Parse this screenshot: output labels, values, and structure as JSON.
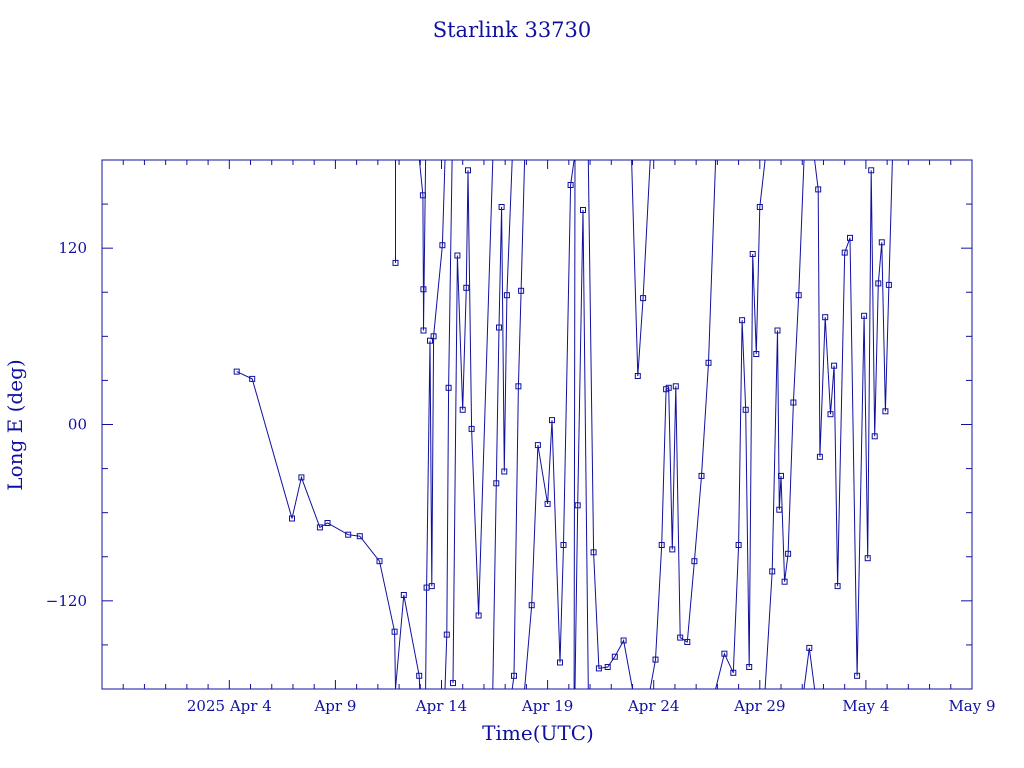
{
  "colors": {
    "ink": "#1010a0",
    "background": "#ffffff"
  },
  "chart_data": {
    "type": "line",
    "title": "Starlink 33730",
    "xlabel": "Time(UTC)",
    "ylabel": "Long E (deg)",
    "xlim": [
      "2025-03-29T00:00",
      "2025-05-09T00:00"
    ],
    "ylim": [
      -180,
      180
    ],
    "x_ticks": [
      {
        "x": "2025-04-04T00:00",
        "label": "2025 Apr  4"
      },
      {
        "x": "2025-04-09T00:00",
        "label": "Apr  9"
      },
      {
        "x": "2025-04-14T00:00",
        "label": "Apr 14"
      },
      {
        "x": "2025-04-19T00:00",
        "label": "Apr 19"
      },
      {
        "x": "2025-04-24T00:00",
        "label": "Apr 24"
      },
      {
        "x": "2025-04-29T00:00",
        "label": "Apr 29"
      },
      {
        "x": "2025-05-04T00:00",
        "label": "May  4"
      },
      {
        "x": "2025-05-09T00:00",
        "label": "May  9"
      }
    ],
    "y_ticks": [
      {
        "y": 120,
        "label": "120"
      },
      {
        "y": 0,
        "label": "00"
      },
      {
        "y": -120,
        "label": "−120"
      }
    ],
    "marker": "square",
    "grid": false,
    "series": [
      {
        "values": [
          [
            "2025-04-04T08:24",
            36
          ],
          [
            "2025-04-05T01:53",
            31
          ],
          [
            "2025-04-06T22:53",
            -64
          ],
          [
            "2025-04-07T09:33",
            -36
          ],
          [
            "2025-04-08T06:24",
            -70
          ],
          [
            "2025-04-08T15:00",
            -67
          ],
          [
            "2025-04-09T14:31",
            -75
          ],
          [
            "2025-04-10T03:36",
            -76
          ],
          [
            "2025-04-11T01:53",
            -93
          ],
          [
            "2025-04-11T18:55",
            -141
          ],
          [
            "2025-04-11T20:00",
            -180
          ]
        ]
      },
      {
        "values": [
          [
            "2025-04-11T20:00",
            180
          ],
          [
            "2025-04-11T20:00",
            110
          ],
          [
            "2025-04-11T20:00",
            180
          ]
        ]
      },
      {
        "values": [
          [
            "2025-04-11T20:00",
            -180
          ],
          [
            "2025-04-12T05:23",
            -116
          ],
          [
            "2025-04-12T22:44",
            -171
          ],
          [
            "2025-04-12T23:20",
            -180
          ]
        ]
      },
      {
        "values": [
          [
            "2025-04-12T23:00",
            180
          ],
          [
            "2025-04-13T03:00",
            156
          ],
          [
            "2025-04-13T03:30",
            92
          ],
          [
            "2025-04-13T03:40",
            64
          ],
          [
            "2025-04-13T06:00",
            180
          ]
        ]
      },
      {
        "values": [
          [
            "2025-04-13T06:00",
            -180
          ],
          [
            "2025-04-13T07:10",
            -111
          ],
          [
            "2025-04-13T11:00",
            57
          ],
          [
            "2025-04-13T13:00",
            -110
          ],
          [
            "2025-04-13T15:00",
            60
          ],
          [
            "2025-04-14T01:00",
            122
          ],
          [
            "2025-04-14T04:00",
            180
          ]
        ]
      },
      {
        "values": [
          [
            "2025-04-14T04:00",
            -180
          ],
          [
            "2025-04-14T06:00",
            -143
          ],
          [
            "2025-04-14T08:00",
            25
          ],
          [
            "2025-04-14T12:00",
            180
          ]
        ]
      },
      {
        "values": [
          [
            "2025-04-14T13:00",
            -176
          ],
          [
            "2025-04-14T18:00",
            115
          ],
          [
            "2025-04-15T00:00",
            10
          ],
          [
            "2025-04-15T04:00",
            93
          ],
          [
            "2025-04-15T06:00",
            173
          ],
          [
            "2025-04-15T10:00",
            -3
          ],
          [
            "2025-04-15T18:00",
            -130
          ],
          [
            "2025-04-16T10:00",
            180
          ]
        ]
      },
      {
        "values": [
          [
            "2025-04-16T10:00",
            -180
          ],
          [
            "2025-04-16T14:00",
            -40
          ],
          [
            "2025-04-16T17:00",
            66
          ],
          [
            "2025-04-16T20:00",
            148
          ],
          [
            "2025-04-16T23:00",
            -32
          ],
          [
            "2025-04-17T02:00",
            88
          ],
          [
            "2025-04-17T08:00",
            180
          ]
        ]
      },
      {
        "values": [
          [
            "2025-04-17T08:00",
            -180
          ],
          [
            "2025-04-17T10:00",
            -171
          ],
          [
            "2025-04-17T15:00",
            26
          ],
          [
            "2025-04-17T18:00",
            91
          ],
          [
            "2025-04-17T22:00",
            180
          ]
        ]
      },
      {
        "values": [
          [
            "2025-04-17T22:00",
            -180
          ],
          [
            "2025-04-18T06:00",
            -123
          ],
          [
            "2025-04-18T13:00",
            -14
          ],
          [
            "2025-04-19T00:00",
            -54
          ],
          [
            "2025-04-19T05:00",
            3
          ],
          [
            "2025-04-19T14:00",
            -162
          ],
          [
            "2025-04-19T18:00",
            -82
          ],
          [
            "2025-04-20T02:00",
            163
          ],
          [
            "2025-04-20T06:00",
            180
          ]
        ]
      },
      {
        "values": [
          [
            "2025-04-20T06:00",
            -180
          ],
          [
            "2025-04-20T07:00",
            180
          ]
        ]
      },
      {
        "values": [
          [
            "2025-04-20T07:00",
            -180
          ],
          [
            "2025-04-20T10:00",
            -55
          ],
          [
            "2025-04-20T16:00",
            146
          ],
          [
            "2025-04-20T22:00",
            -180
          ]
        ]
      },
      {
        "values": [
          [
            "2025-04-20T22:00",
            180
          ],
          [
            "2025-04-21T04:00",
            -87
          ],
          [
            "2025-04-21T10:00",
            -166
          ],
          [
            "2025-04-21T20:00",
            -165
          ],
          [
            "2025-04-22T04:00",
            -158
          ],
          [
            "2025-04-22T14:00",
            -147
          ],
          [
            "2025-04-23T00:00",
            -180
          ]
        ]
      },
      {
        "values": [
          [
            "2025-04-22T23:00",
            180
          ],
          [
            "2025-04-23T06:00",
            33
          ],
          [
            "2025-04-23T12:00",
            86
          ],
          [
            "2025-04-23T20:00",
            180
          ]
        ]
      },
      {
        "values": [
          [
            "2025-04-23T20:00",
            -180
          ],
          [
            "2025-04-24T02:00",
            -160
          ],
          [
            "2025-04-24T09:00",
            -82
          ],
          [
            "2025-04-24T14:00",
            24
          ],
          [
            "2025-04-24T17:00",
            25
          ],
          [
            "2025-04-24T21:00",
            -85
          ],
          [
            "2025-04-25T01:00",
            26
          ],
          [
            "2025-04-25T06:00",
            -145
          ],
          [
            "2025-04-25T14:00",
            -148
          ],
          [
            "2025-04-25T22:00",
            -93
          ],
          [
            "2025-04-26T06:00",
            -35
          ],
          [
            "2025-04-26T14:00",
            42
          ],
          [
            "2025-04-26T22:00",
            180
          ]
        ]
      },
      {
        "values": [
          [
            "2025-04-26T22:00",
            -180
          ],
          [
            "2025-04-27T08:00",
            -156
          ],
          [
            "2025-04-27T18:00",
            -169
          ],
          [
            "2025-04-28T00:00",
            -82
          ],
          [
            "2025-04-28T04:00",
            71
          ],
          [
            "2025-04-28T08:00",
            10
          ],
          [
            "2025-04-28T12:00",
            -165
          ],
          [
            "2025-04-28T16:00",
            116
          ],
          [
            "2025-04-28T20:00",
            48
          ],
          [
            "2025-04-29T00:00",
            148
          ],
          [
            "2025-04-29T06:00",
            180
          ]
        ]
      },
      {
        "values": [
          [
            "2025-04-29T06:00",
            -180
          ],
          [
            "2025-04-29T14:00",
            -100
          ],
          [
            "2025-04-29T20:00",
            64
          ],
          [
            "2025-04-29T22:00",
            -58
          ],
          [
            "2025-04-30T00:00",
            -35
          ],
          [
            "2025-04-30T04:00",
            -107
          ],
          [
            "2025-04-30T08:00",
            -88
          ],
          [
            "2025-04-30T14:00",
            15
          ],
          [
            "2025-04-30T20:00",
            88
          ],
          [
            "2025-05-01T02:00",
            180
          ]
        ]
      },
      {
        "values": [
          [
            "2025-05-01T02:00",
            -180
          ],
          [
            "2025-05-01T08:00",
            -152
          ],
          [
            "2025-05-01T14:00",
            -180
          ]
        ]
      },
      {
        "values": [
          [
            "2025-05-01T14:00",
            180
          ],
          [
            "2025-05-01T18:00",
            160
          ],
          [
            "2025-05-01T20:00",
            -22
          ],
          [
            "2025-05-02T02:00",
            73
          ],
          [
            "2025-05-02T08:00",
            7
          ],
          [
            "2025-05-02T12:00",
            40
          ],
          [
            "2025-05-02T16:00",
            -110
          ],
          [
            "2025-05-03T00:00",
            117
          ],
          [
            "2025-05-03T06:00",
            127
          ],
          [
            "2025-05-03T14:00",
            -171
          ],
          [
            "2025-05-03T22:00",
            74
          ],
          [
            "2025-05-04T02:00",
            -91
          ],
          [
            "2025-05-04T06:00",
            173
          ],
          [
            "2025-05-04T10:00",
            -8
          ],
          [
            "2025-05-04T14:00",
            96
          ],
          [
            "2025-05-04T18:00",
            124
          ],
          [
            "2025-05-04T22:00",
            9
          ],
          [
            "2025-05-05T02:00",
            95
          ],
          [
            "2025-05-05T06:00",
            180
          ]
        ]
      }
    ]
  }
}
